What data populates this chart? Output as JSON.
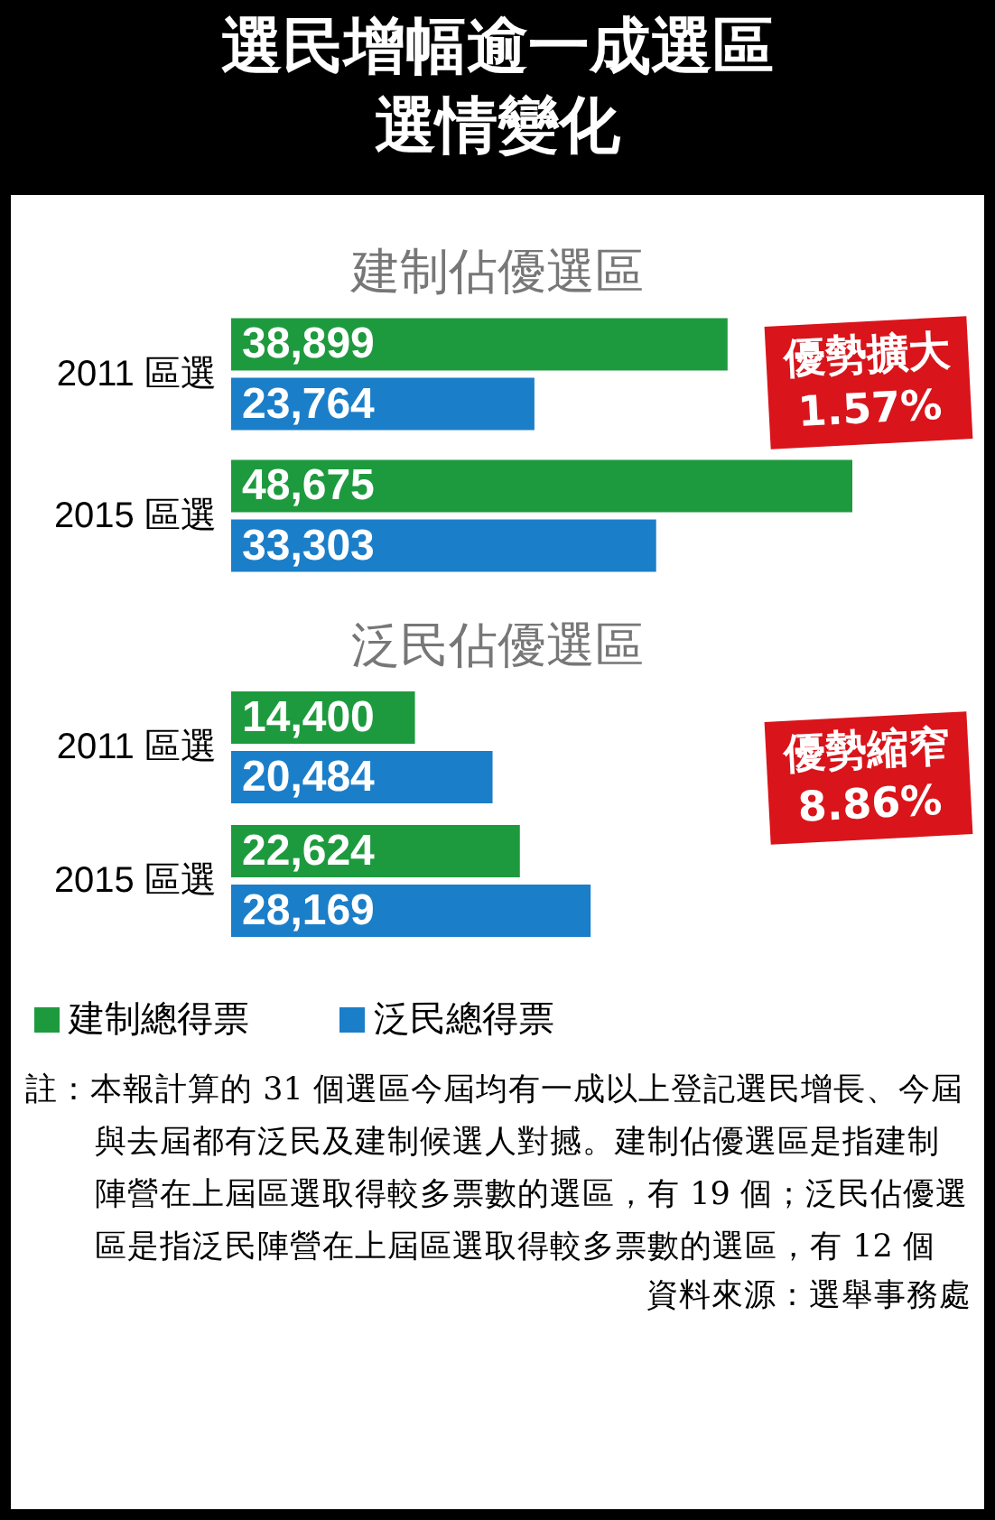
{
  "chart_data": [
    {
      "type": "bar",
      "orientation": "horizontal",
      "title": "選民增幅逾一成選區選情變化",
      "subtitle": "建制佔優選區",
      "categories": [
        "2011 區選",
        "2015 區選"
      ],
      "series": [
        {
          "color": "#1e9a3e",
          "values": [
            38899,
            48675
          ],
          "value_labels": [
            "38,899",
            "48,675"
          ]
        },
        {
          "color": "#1b7ec9",
          "values": [
            23764,
            33303
          ],
          "value_labels": [
            "23,764",
            "33,303"
          ]
        }
      ],
      "annotations": [
        "優勢擴大\n1.57%"
      ]
    },
    {
      "type": "bar",
      "orientation": "horizontal",
      "subtitle": "泛民佔優選區",
      "categories": [
        "2011 區選",
        "2015 區選"
      ],
      "series": [
        {
          "name": "建制總得票",
          "color": "#1e9a3e",
          "values": [
            14400,
            22624
          ],
          "value_labels": [
            "14,400",
            "22,624"
          ]
        },
        {
          "name": "泛民總得票",
          "color": "#1b7ec9",
          "values": [
            20484,
            28169
          ],
          "value_labels": [
            "20,484",
            "28,169"
          ]
        }
      ],
      "legend": "bottom",
      "annotations": [
        "優勢縮窄\n8.86%",
        "註：本報計算的 31 個選區今屆均有一成以上登記選民增長、今屆與去屆都有泛民及建制候選人對撼。建制佔優選區是指建制陣營在上屆區選取得較多票數的選區，有 19 個；泛民佔優選區是指泛民陣營在上屆區選取得較多票數的選區，有 12 個",
        "資料來源：選舉事務處"
      ]
    }
  ]
}
